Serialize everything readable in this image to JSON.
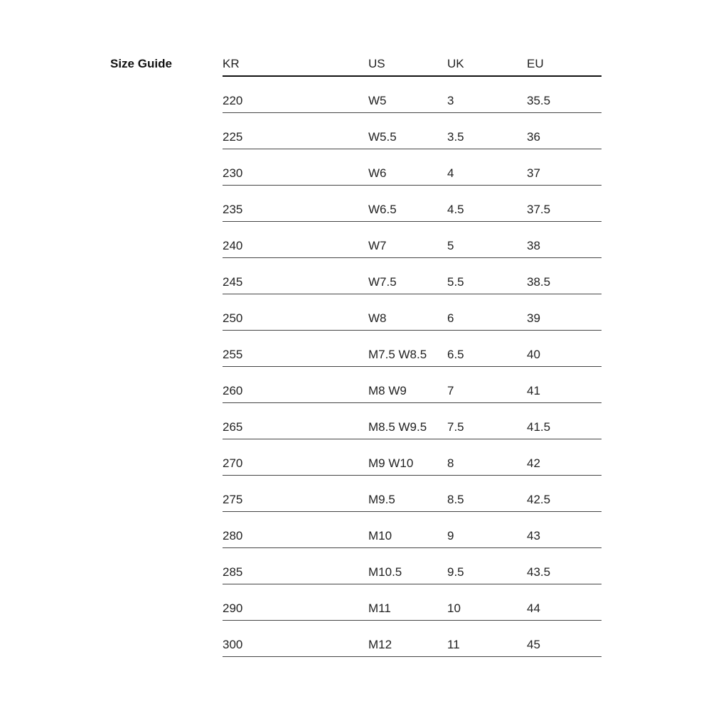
{
  "title": "Size Guide",
  "columns": [
    "KR",
    "US",
    "UK",
    "EU"
  ],
  "rows": [
    [
      "220",
      "W5",
      "3",
      "35.5"
    ],
    [
      "225",
      "W5.5",
      "3.5",
      "36"
    ],
    [
      "230",
      "W6",
      "4",
      "37"
    ],
    [
      "235",
      "W6.5",
      "4.5",
      "37.5"
    ],
    [
      "240",
      "W7",
      "5",
      "38"
    ],
    [
      "245",
      "W7.5",
      "5.5",
      "38.5"
    ],
    [
      "250",
      "W8",
      "6",
      "39"
    ],
    [
      "255",
      "M7.5 W8.5",
      "6.5",
      "40"
    ],
    [
      "260",
      "M8 W9",
      "7",
      "41"
    ],
    [
      "265",
      "M8.5 W9.5",
      "7.5",
      "41.5"
    ],
    [
      "270",
      "M9 W10",
      "8",
      "42"
    ],
    [
      "275",
      "M9.5",
      "8.5",
      "42.5"
    ],
    [
      "280",
      "M10",
      "9",
      "43"
    ],
    [
      "285",
      "M10.5",
      "9.5",
      "43.5"
    ],
    [
      "290",
      "M11",
      "10",
      "44"
    ],
    [
      "300",
      "M12",
      "11",
      "45"
    ]
  ]
}
